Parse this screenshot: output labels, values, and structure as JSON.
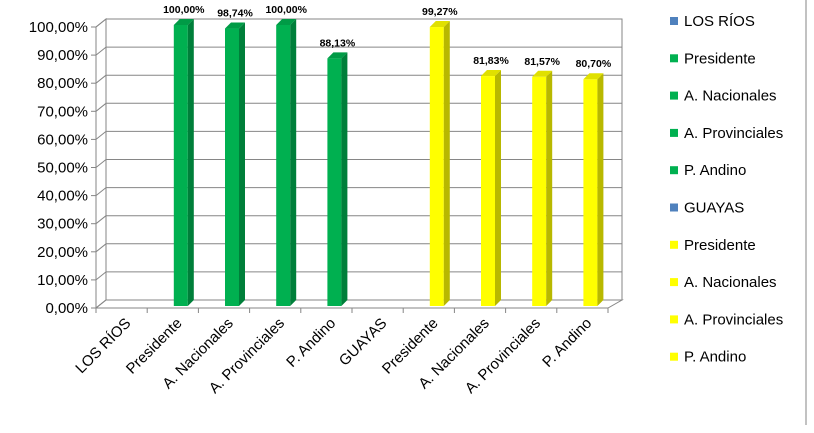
{
  "chart_data": {
    "type": "bar",
    "categories": [
      "LOS RÍOS",
      "Presidente",
      "A. Nacionales",
      "A. Provinciales",
      "P. Andino",
      "GUAYAS",
      "Presidente",
      "A. Nacionales",
      "A. Provinciales",
      "P. Andino"
    ],
    "values": [
      null,
      100.0,
      98.74,
      100.0,
      88.13,
      null,
      99.27,
      81.83,
      81.57,
      80.7
    ],
    "data_labels": [
      "",
      "100,00%",
      "98,74%",
      "100,00%",
      "88,13%",
      "",
      "99,27%",
      "81,83%",
      "81,57%",
      "80,70%"
    ],
    "bar_colors": [
      "#4f81bd",
      "#00b050",
      "#00b050",
      "#00b050",
      "#00b050",
      "#4f81bd",
      "#ffff00",
      "#ffff00",
      "#ffff00",
      "#ffff00"
    ],
    "ylim": [
      0,
      100
    ],
    "y_ticks": [
      0,
      10,
      20,
      30,
      40,
      50,
      60,
      70,
      80,
      90,
      100
    ],
    "y_tick_labels": [
      "0,00%",
      "10,00%",
      "20,00%",
      "30,00%",
      "40,00%",
      "50,00%",
      "60,00%",
      "70,00%",
      "80,00%",
      "90,00%",
      "100,00%"
    ],
    "grid": true,
    "three_d": true,
    "legend_position": "right",
    "legend": [
      {
        "label": "LOS RÍOS",
        "color": "#4f81bd"
      },
      {
        "label": "Presidente",
        "color": "#00b050"
      },
      {
        "label": "A. Nacionales",
        "color": "#00b050"
      },
      {
        "label": "A. Provinciales",
        "color": "#00b050"
      },
      {
        "label": "P. Andino",
        "color": "#00b050"
      },
      {
        "label": "GUAYAS",
        "color": "#4f81bd"
      },
      {
        "label": "Presidente",
        "color": "#ffff00"
      },
      {
        "label": "A. Nacionales",
        "color": "#ffff00"
      },
      {
        "label": "A. Provinciales",
        "color": "#ffff00"
      },
      {
        "label": "P. Andino",
        "color": "#ffff00"
      }
    ]
  }
}
